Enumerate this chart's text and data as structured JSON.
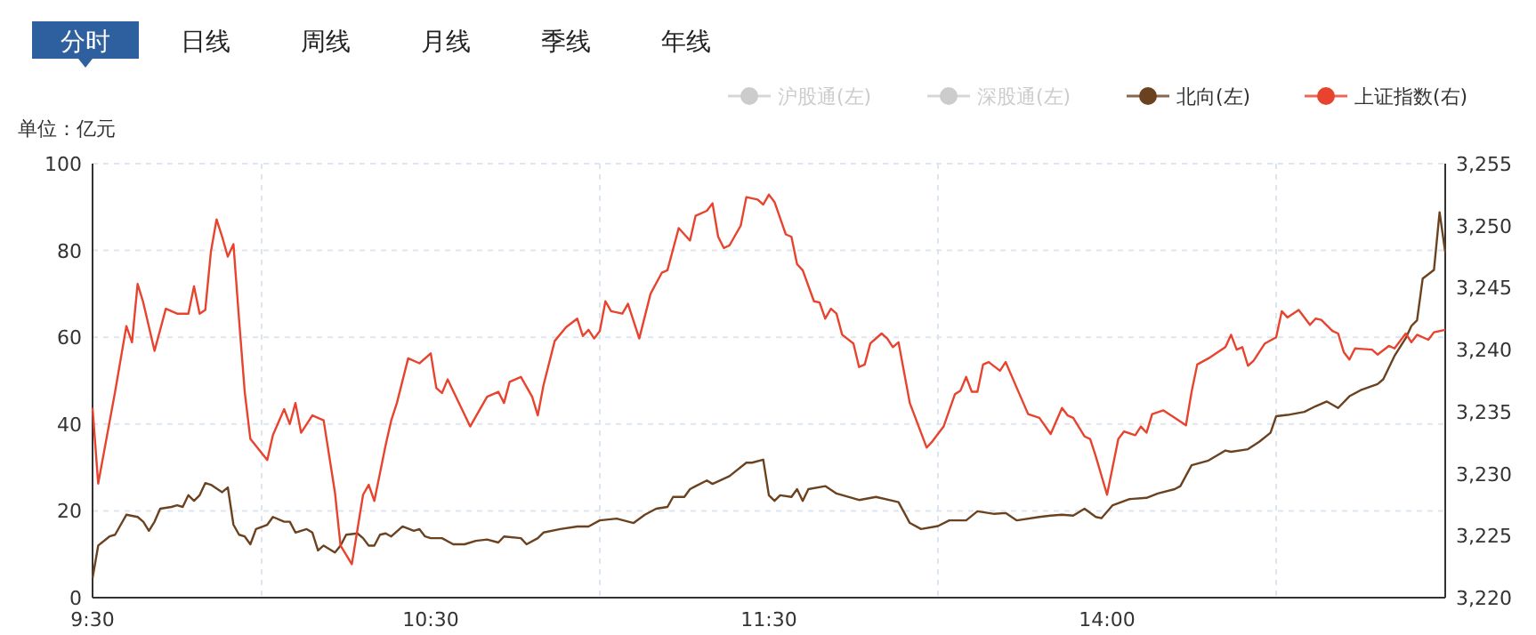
{
  "chart_data": {
    "type": "line",
    "annotations": [
      "分时",
      "日线",
      "周线",
      "月线",
      "季线",
      "年线"
    ],
    "ylabel": "单位：亿元",
    "categories": [
      "9:30",
      null,
      null,
      null,
      null,
      null,
      null,
      null,
      null,
      null,
      null,
      null,
      null,
      null,
      null,
      null,
      null,
      null,
      null,
      null,
      null,
      null,
      null,
      null,
      null,
      null,
      null,
      null,
      null,
      null,
      null,
      null,
      null,
      null,
      null,
      null,
      null,
      null,
      null,
      null,
      null,
      null,
      null,
      null,
      null,
      null,
      null,
      null,
      null,
      null,
      null,
      null,
      null,
      null,
      null,
      null,
      null,
      null,
      null,
      null,
      "10:30",
      null,
      null,
      null,
      null,
      null,
      null,
      null,
      null,
      null,
      null,
      null,
      null,
      null,
      null,
      null,
      null,
      null,
      null,
      null,
      null,
      null,
      null,
      null,
      null,
      null,
      null,
      null,
      null,
      null,
      null,
      null,
      null,
      null,
      null,
      null,
      null,
      null,
      null,
      null,
      null,
      null,
      null,
      null,
      null,
      null,
      null,
      null,
      null,
      null,
      null,
      null,
      null,
      null,
      null,
      null,
      null,
      null,
      null,
      null,
      "11:30",
      null,
      null,
      null,
      null,
      null,
      null,
      null,
      null,
      null,
      null,
      null,
      null,
      null,
      null,
      null,
      null,
      null,
      null,
      null,
      null,
      null,
      null,
      null,
      null,
      null,
      null,
      null,
      null,
      null,
      null,
      null,
      null,
      null,
      null,
      null,
      null,
      null,
      null,
      null,
      null,
      null,
      null,
      null,
      null,
      null,
      null,
      null,
      null,
      null,
      null,
      null,
      null,
      null,
      null,
      null,
      null,
      null,
      null,
      null,
      "14:00",
      null,
      null,
      null,
      null,
      null,
      null,
      null,
      null,
      null,
      null,
      null,
      null,
      null,
      null,
      null,
      null,
      null,
      null,
      null,
      null,
      null,
      null,
      null,
      null,
      null,
      null,
      null,
      null,
      null,
      null,
      null,
      null,
      null,
      null,
      null,
      null,
      null,
      null,
      null,
      null,
      null,
      null,
      null,
      null,
      null,
      null,
      null,
      null,
      null,
      null,
      null,
      null,
      null,
      null,
      null,
      null,
      null,
      null,
      null,
      null
    ],
    "ylim": [
      0,
      100
    ],
    "yticks": [
      0,
      20,
      40,
      60,
      80,
      100
    ],
    "y2lim": [
      3220,
      3255
    ],
    "y2ticks": [
      {
        "value": 3220,
        "label": "3,220"
      },
      {
        "value": 3225,
        "label": "3,225"
      },
      {
        "value": 3230,
        "label": "3,230"
      },
      {
        "value": 3235,
        "label": "3,235"
      },
      {
        "value": 3240,
        "label": "3,240"
      },
      {
        "value": 3245,
        "label": "3,245"
      },
      {
        "value": 3250,
        "label": "3,250"
      },
      {
        "value": 3255,
        "label": "3,255"
      }
    ],
    "grid": true,
    "legend": "top right",
    "marker": "none",
    "line_style": "solid",
    "series": [
      {
        "name": "沪股通(左)",
        "color": "#cccccc",
        "values": [
          null,
          null,
          null,
          null,
          null,
          null,
          null,
          null,
          null,
          null,
          null,
          null,
          null,
          null,
          null,
          null,
          null,
          null,
          null,
          null,
          null,
          null,
          null,
          null,
          null,
          null,
          null,
          null,
          null,
          null,
          null,
          null,
          null,
          null,
          null,
          null,
          null,
          null,
          null,
          null,
          null,
          null,
          null,
          null,
          null,
          null,
          null,
          null,
          null,
          null,
          null,
          null,
          null,
          null,
          null,
          null,
          null,
          null,
          null,
          null,
          null,
          null,
          null,
          null,
          null,
          null,
          null,
          null,
          null,
          null,
          null,
          null,
          null,
          null,
          null,
          null,
          null,
          null,
          null,
          null,
          null,
          null,
          null,
          null,
          null,
          null,
          null,
          null,
          null,
          null,
          null,
          null,
          null,
          null,
          null,
          null,
          null,
          null,
          null,
          null,
          null,
          null,
          null,
          null,
          null,
          null,
          null,
          null,
          null,
          null,
          null,
          null,
          null,
          null,
          null,
          null,
          null,
          null,
          null,
          null,
          null,
          null,
          null,
          null,
          null,
          null,
          null,
          null,
          null,
          null,
          null,
          null,
          null,
          null,
          null,
          null,
          null,
          null,
          null,
          null,
          null,
          null,
          null,
          null,
          null,
          null,
          null,
          null,
          null,
          null,
          null,
          null,
          null,
          null,
          null,
          null,
          null,
          null,
          null,
          null,
          null,
          null,
          null,
          null,
          null,
          null,
          null,
          null,
          null,
          null,
          null,
          null,
          null,
          null,
          null,
          null,
          null,
          null,
          null,
          null,
          null,
          null,
          null,
          null,
          null,
          null,
          null,
          null,
          null,
          null,
          null,
          null,
          null,
          null,
          null,
          null,
          null,
          null,
          null,
          null,
          null,
          null,
          null,
          null,
          null,
          null,
          null,
          null,
          null,
          null,
          null,
          null,
          null,
          null,
          null,
          null,
          null,
          null,
          null,
          null,
          null,
          null,
          null,
          null,
          null,
          null,
          null,
          null,
          null,
          null,
          null,
          null,
          null,
          null,
          null,
          null,
          null,
          null,
          null,
          null,
          null
        ]
      },
      {
        "name": "深股通(左)",
        "color": "#cccccc",
        "values": [
          null,
          null,
          null,
          null,
          null,
          null,
          null,
          null,
          null,
          null,
          null,
          null,
          null,
          null,
          null,
          null,
          null,
          null,
          null,
          null,
          null,
          null,
          null,
          null,
          null,
          null,
          null,
          null,
          null,
          null,
          null,
          null,
          null,
          null,
          null,
          null,
          null,
          null,
          null,
          null,
          null,
          null,
          null,
          null,
          null,
          null,
          null,
          null,
          null,
          null,
          null,
          null,
          null,
          null,
          null,
          null,
          null,
          null,
          null,
          null,
          null,
          null,
          null,
          null,
          null,
          null,
          null,
          null,
          null,
          null,
          null,
          null,
          null,
          null,
          null,
          null,
          null,
          null,
          null,
          null,
          null,
          null,
          null,
          null,
          null,
          null,
          null,
          null,
          null,
          null,
          null,
          null,
          null,
          null,
          null,
          null,
          null,
          null,
          null,
          null,
          null,
          null,
          null,
          null,
          null,
          null,
          null,
          null,
          null,
          null,
          null,
          null,
          null,
          null,
          null,
          null,
          null,
          null,
          null,
          null,
          null,
          null,
          null,
          null,
          null,
          null,
          null,
          null,
          null,
          null,
          null,
          null,
          null,
          null,
          null,
          null,
          null,
          null,
          null,
          null,
          null,
          null,
          null,
          null,
          null,
          null,
          null,
          null,
          null,
          null,
          null,
          null,
          null,
          null,
          null,
          null,
          null,
          null,
          null,
          null,
          null,
          null,
          null,
          null,
          null,
          null,
          null,
          null,
          null,
          null,
          null,
          null,
          null,
          null,
          null,
          null,
          null,
          null,
          null,
          null,
          null,
          null,
          null,
          null,
          null,
          null,
          null,
          null,
          null,
          null,
          null,
          null,
          null,
          null,
          null,
          null,
          null,
          null,
          null,
          null,
          null,
          null,
          null,
          null,
          null,
          null,
          null,
          null,
          null,
          null,
          null,
          null,
          null,
          null,
          null,
          null,
          null,
          null,
          null,
          null,
          null,
          null,
          null,
          null,
          null,
          null,
          null,
          null,
          null,
          null,
          null,
          null,
          null,
          null,
          null,
          null,
          null,
          null,
          null,
          null,
          null
        ]
      },
      {
        "name": "北向(左)",
        "color": "#6b4220",
        "values": [
          4.5,
          12.0,
          null,
          14.1,
          14.5,
          16.8,
          19.1,
          null,
          18.6,
          17.5,
          15.4,
          17.5,
          20.5,
          null,
          20.9,
          21.3,
          20.9,
          23.6,
          22.3,
          23.6,
          26.4,
          26.0,
          null,
          24.3,
          25.4,
          16.8,
          14.5,
          14.1,
          12.3,
          15.8,
          null,
          16.8,
          18.6,
          null,
          17.5,
          17.5,
          15.0,
          null,
          15.8,
          15.0,
          10.9,
          12.0,
          null,
          10.4,
          12.0,
          14.5,
          null,
          14.8,
          13.7,
          12.0,
          12.0,
          14.5,
          14.8,
          14.1,
          null,
          16.4,
          null,
          15.4,
          15.8,
          14.1,
          13.7,
          null,
          13.7,
          null,
          12.3,
          null,
          12.3,
          null,
          13.1,
          null,
          13.4,
          null,
          12.7,
          14.1,
          null,
          null,
          13.7,
          12.3,
          null,
          13.7,
          15.0,
          null,
          null,
          15.8,
          null,
          null,
          16.4,
          null,
          16.4,
          null,
          17.8,
          null,
          null,
          18.2,
          null,
          null,
          17.2,
          null,
          19.1,
          null,
          20.5,
          null,
          20.9,
          23.2,
          null,
          23.2,
          25.0,
          25.7,
          null,
          27.0,
          26.2,
          null,
          null,
          28.0,
          null,
          null,
          31.1,
          31.1,
          null,
          31.8,
          23.6,
          22.3,
          23.6,
          null,
          23.2,
          25.0,
          22.3,
          25.0,
          null,
          null,
          25.7,
          null,
          24.0,
          null,
          null,
          null,
          22.5,
          null,
          null,
          23.2,
          null,
          null,
          22.3,
          22.0,
          null,
          17.2,
          null,
          15.8,
          null,
          null,
          16.5,
          null,
          17.8,
          null,
          null,
          17.8,
          null,
          19.9,
          null,
          null,
          19.3,
          null,
          19.5,
          null,
          17.8,
          null,
          null,
          null,
          18.6,
          null,
          18.9,
          null,
          19.1,
          null,
          18.9,
          null,
          20.5,
          null,
          18.6,
          18.3,
          null,
          21.3,
          null,
          null,
          22.7,
          null,
          null,
          23.0,
          null,
          24.0,
          null,
          null,
          25.0,
          25.7,
          null,
          30.5,
          null,
          null,
          31.6,
          null,
          null,
          33.9,
          33.6,
          null,
          null,
          34.2,
          null,
          35.9,
          null,
          38.0,
          41.8,
          null,
          42.1,
          null,
          null,
          42.8,
          null,
          44.1,
          null,
          45.2,
          null,
          43.7,
          null,
          46.4,
          null,
          47.8,
          null,
          null,
          49.2,
          50.3,
          null,
          55.7,
          null,
          59.8,
          62.6,
          63.9,
          73.5,
          null,
          75.5,
          88.8,
          79.6
        ]
      },
      {
        "name": "上证指数(右)",
        "color": "#e8432e",
        "axis": "y2",
        "values": [
          3235.3,
          3229.2,
          null,
          null,
          3236.6,
          null,
          3241.9,
          3240.6,
          3245.3,
          3243.8,
          null,
          3239.9,
          null,
          3243.3,
          null,
          3242.9,
          null,
          3242.9,
          3245.1,
          3242.9,
          3243.2,
          3247.9,
          3250.5,
          3249.1,
          3247.5,
          3248.5,
          3242.4,
          3236.6,
          3232.8,
          null,
          null,
          3231.1,
          3233.1,
          null,
          3235.2,
          3234.0,
          3235.7,
          3233.3,
          null,
          3234.7,
          null,
          3234.3,
          3231.4,
          3228.5,
          3224.2,
          null,
          3222.7,
          null,
          3228.3,
          3229.1,
          3227.8,
          null,
          3232.3,
          3234.3,
          3235.7,
          null,
          3239.3,
          null,
          3238.9,
          null,
          3239.7,
          3236.9,
          3236.5,
          3237.6,
          null,
          null,
          null,
          3233.8,
          3234.6,
          null,
          3236.2,
          null,
          3236.6,
          3235.7,
          3237.4,
          null,
          3237.8,
          null,
          3236.2,
          3234.7,
          3237.1,
          null,
          3240.7,
          null,
          3241.8,
          null,
          3242.5,
          3241.1,
          3241.6,
          3240.9,
          3241.5,
          3243.9,
          3243.1,
          null,
          3242.9,
          3243.7,
          null,
          3240.9,
          null,
          3244.5,
          null,
          3246.2,
          3246.4,
          null,
          3249.8,
          null,
          3248.8,
          3250.8,
          null,
          3251.2,
          3251.8,
          3249.1,
          3248.2,
          3248.4,
          null,
          3250.0,
          3252.3,
          null,
          3252.1,
          3251.7,
          3252.5,
          3251.9,
          null,
          3249.3,
          3249.1,
          3246.9,
          3246.4,
          null,
          3243.9,
          3243.8,
          3242.5,
          3243.3,
          3242.9,
          3241.2,
          null,
          3240.5,
          3238.6,
          3238.8,
          3240.5,
          null,
          3241.3,
          3240.9,
          3240.2,
          3240.6,
          null,
          3235.7,
          null,
          null,
          3232.1,
          3232.6,
          null,
          3233.8,
          null,
          3236.4,
          3236.7,
          3237.8,
          3236.6,
          3236.6,
          3238.8,
          3239.0,
          null,
          3238.3,
          3239.0,
          null,
          3236.9,
          null,
          3234.8,
          null,
          3234.5,
          null,
          3233.2,
          null,
          3235.3,
          3234.7,
          3234.5,
          null,
          3233.0,
          3232.8,
          3231.4,
          null,
          3228.3,
          null,
          3232.8,
          3233.4,
          null,
          3233.1,
          3233.8,
          3233.3,
          3234.8,
          null,
          3235.1,
          null,
          3234.5,
          null,
          3233.9,
          3236.6,
          3238.8,
          null,
          3239.3,
          null,
          null,
          3240.2,
          3241.2,
          3240.0,
          3240.2,
          3238.7,
          3239.1,
          null,
          3240.5,
          null,
          3241.0,
          3243.1,
          3242.6,
          null,
          3243.2,
          null,
          3242.0,
          3242.5,
          3242.4,
          null,
          3241.5,
          3241.3,
          3239.8,
          3239.2,
          3240.1,
          null,
          null,
          3240.0,
          3239.6,
          null,
          3240.3,
          3240.1,
          null,
          3241.3,
          3240.6,
          3241.2,
          null,
          3240.8,
          3241.4,
          null,
          3241.6
        ]
      }
    ]
  }
}
